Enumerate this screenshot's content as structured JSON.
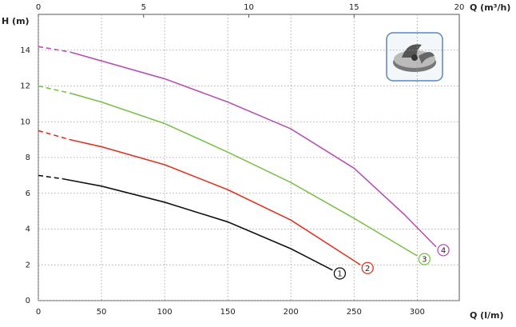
{
  "chart_data": {
    "type": "line",
    "y_label": "H (m)",
    "x_label": "Q (l/m)",
    "x2_label": "Q (m³/h)",
    "xlim": [
      0,
      333.3
    ],
    "xticks": [
      0,
      50,
      100,
      150,
      200,
      250,
      300
    ],
    "x2lim": [
      0,
      20
    ],
    "x2ticks": [
      0,
      5,
      10,
      15,
      20
    ],
    "ylim": [
      0,
      16
    ],
    "yticks": [
      0,
      2,
      4,
      6,
      8,
      10,
      12,
      14
    ],
    "grid": true,
    "dashed_first_segment": true,
    "series": [
      {
        "name": "1",
        "color": "#111111",
        "x": [
          0,
          20,
          50,
          100,
          150,
          200,
          233
        ],
        "values": [
          7.0,
          6.8,
          6.4,
          5.5,
          4.4,
          2.9,
          1.7
        ]
      },
      {
        "name": "2",
        "color": "#e03322",
        "x": [
          0,
          25,
          50,
          100,
          150,
          200,
          255
        ],
        "values": [
          9.5,
          9.0,
          8.6,
          7.6,
          6.2,
          4.5,
          2.0
        ]
      },
      {
        "name": "3",
        "color": "#7cc14e",
        "x": [
          0,
          25,
          50,
          100,
          150,
          200,
          250,
          300
        ],
        "values": [
          12.0,
          11.6,
          11.1,
          9.9,
          8.3,
          6.6,
          4.6,
          2.5
        ]
      },
      {
        "name": "4",
        "color": "#b553b5",
        "x": [
          0,
          25,
          50,
          100,
          150,
          200,
          250,
          290,
          315
        ],
        "values": [
          14.2,
          13.9,
          13.4,
          12.4,
          11.1,
          9.6,
          7.4,
          4.8,
          3.0
        ]
      }
    ]
  }
}
